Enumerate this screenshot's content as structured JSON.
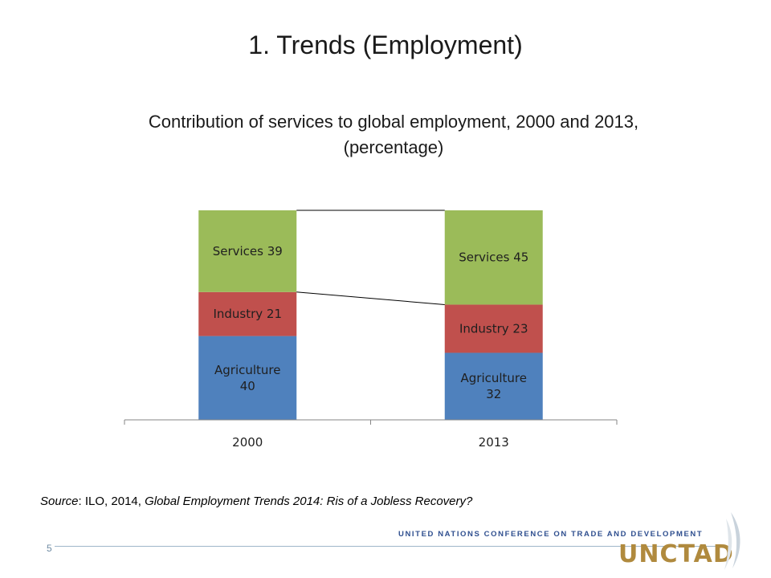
{
  "slide": {
    "title": "1. Trends (Employment)",
    "page_number": "5"
  },
  "source": {
    "label": "Source",
    "publisher": ": ILO, 2014, ",
    "publication": "Global Employment Trends 2014: Ris of a Jobless  Recovery?"
  },
  "footer": {
    "org_line": "UNITED NATIONS CONFERENCE ON TRADE AND DEVELOPMENT",
    "logo_text": "UNCTAD"
  },
  "colors": {
    "agriculture": "#4f81bd",
    "industry": "#c0504d",
    "services": "#9bbb59",
    "axis": "#868686"
  },
  "chart_data": {
    "type": "bar",
    "stacked": true,
    "title": "Contribution of services to global employment, 2000 and 2013,",
    "subtitle": "(percentage)",
    "categories": [
      "2000",
      "2013"
    ],
    "series": [
      {
        "name": "Agriculture",
        "values": [
          40,
          32
        ],
        "labels": [
          "Agriculture 40",
          "Agriculture 32"
        ]
      },
      {
        "name": "Industry",
        "values": [
          21,
          23
        ],
        "labels": [
          "Industry 21",
          "Industry 23"
        ]
      },
      {
        "name": "Services",
        "values": [
          39,
          45
        ],
        "labels": [
          "Services 39",
          "Services 45"
        ]
      }
    ],
    "ylim": [
      0,
      100
    ],
    "legend": "none",
    "grid": false,
    "connector_lines": true
  }
}
